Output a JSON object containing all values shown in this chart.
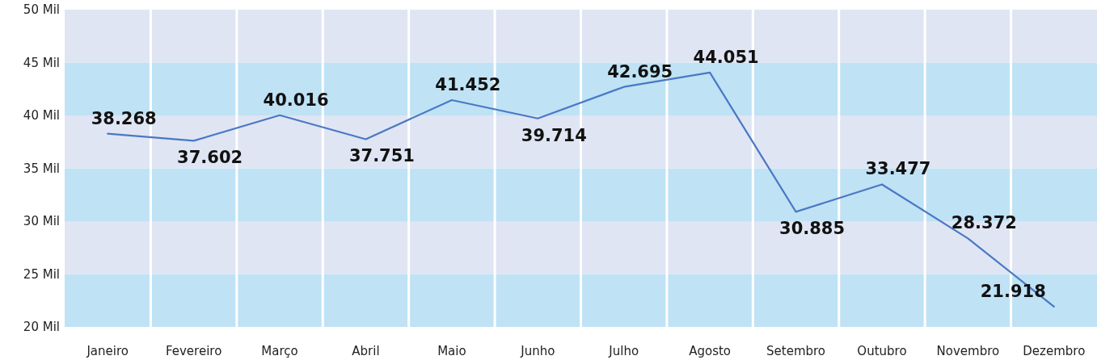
{
  "chart_data": {
    "type": "line",
    "categories": [
      "Janeiro",
      "Fevereiro",
      "Março",
      "Abril",
      "Maio",
      "Junho",
      "Julho",
      "Agosto",
      "Setembro",
      "Outubro",
      "Novembro",
      "Dezembro"
    ],
    "series": [
      {
        "color": "#4a78c4",
        "values": [
          38.268,
          37.602,
          40.016,
          37.751,
          41.452,
          39.714,
          42.695,
          44.051,
          30.885,
          33.477,
          28.372,
          21.918
        ]
      }
    ],
    "ylim": [
      20,
      50
    ],
    "yticks": [
      {
        "value": 20,
        "label": "20 Mil"
      },
      {
        "value": 25,
        "label": "25 Mil"
      },
      {
        "value": 30,
        "label": "30 Mil"
      },
      {
        "value": 35,
        "label": "35 Mil"
      },
      {
        "value": 40,
        "label": "40 Mil"
      },
      {
        "value": 45,
        "label": "45 Mil"
      },
      {
        "value": 50,
        "label": "50 Mil"
      }
    ],
    "bands": [
      {
        "axis": "y",
        "from": 20,
        "to": 25,
        "color": "#bfe2f5"
      },
      {
        "axis": "y",
        "from": 25,
        "to": 30,
        "color": "#dfe5f3"
      },
      {
        "axis": "y",
        "from": 30,
        "to": 35,
        "color": "#bfe2f5"
      },
      {
        "axis": "y",
        "from": 35,
        "to": 40,
        "color": "#dfe5f3"
      },
      {
        "axis": "y",
        "from": 40,
        "to": 45,
        "color": "#bfe2f5"
      },
      {
        "axis": "y",
        "from": 45,
        "to": 50,
        "color": "#dfe5f3"
      }
    ],
    "grid": "x",
    "marker": "none",
    "data_labels": true
  }
}
